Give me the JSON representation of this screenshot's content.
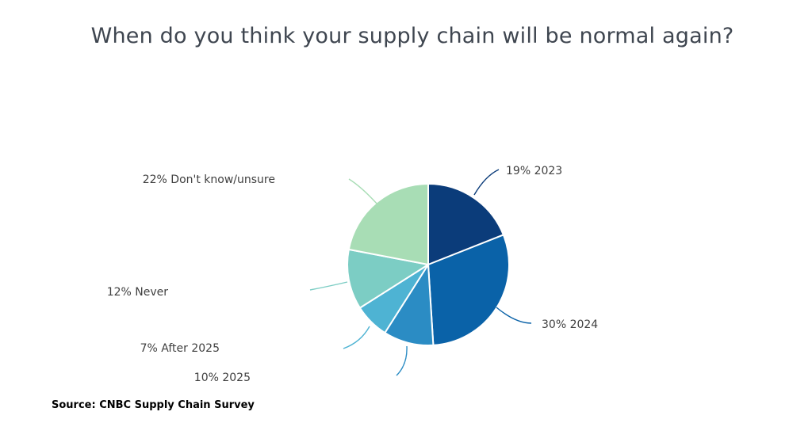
{
  "chart_data": {
    "type": "pie",
    "title": "When do you think your supply chain will be normal again?",
    "slices": [
      {
        "label": "19% 2023",
        "value": 19,
        "color": "#0b3c7a"
      },
      {
        "label": "30% 2024",
        "value": 30,
        "color": "#0a62a8"
      },
      {
        "label": "10% 2025",
        "value": 10,
        "color": "#2b8cc4"
      },
      {
        "label": "7% After 2025",
        "value": 7,
        "color": "#4eb3d3"
      },
      {
        "label": "12% Never",
        "value": 12,
        "color": "#7ccdc4"
      },
      {
        "label": "22% Don't know/unsure",
        "value": 22,
        "color": "#a8ddb5"
      }
    ],
    "source": "Source: CNBC Supply Chain Survey"
  }
}
